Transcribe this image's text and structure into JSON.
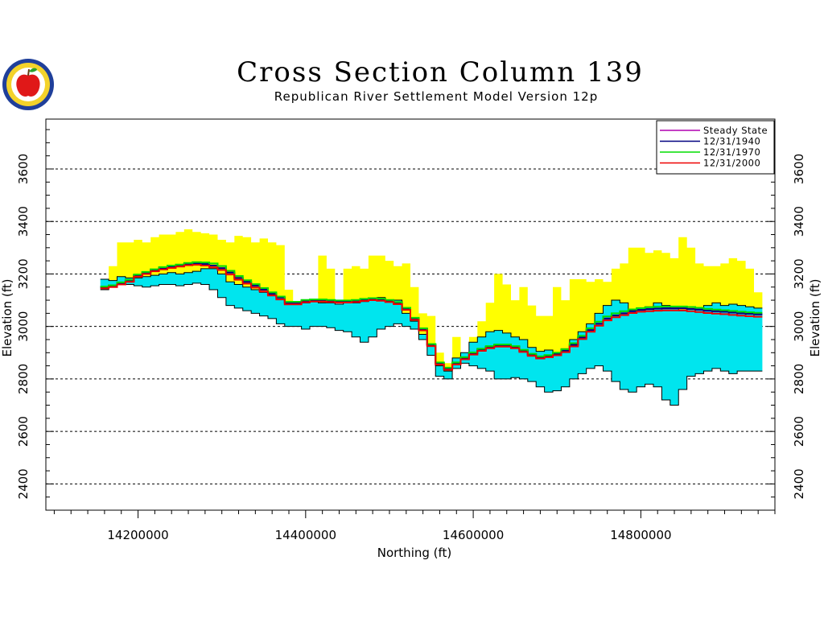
{
  "chart_data": {
    "type": "area",
    "title": "Cross Section Column 139",
    "subtitle": "Republican River Settlement Model Version 12p",
    "xlabel": "Northing  (ft)",
    "ylabel": "Elevation  (ft)",
    "ylabel_right": "Elevation  (ft)",
    "xlim": [
      14090000,
      14960000
    ],
    "ylim": [
      2300,
      3790
    ],
    "xticks": [
      14200000,
      14400000,
      14600000,
      14800000
    ],
    "xtick_labels": [
      "14200000",
      "14400000",
      "14600000",
      "14800000"
    ],
    "yticks": [
      2400,
      2600,
      2800,
      3000,
      3200,
      3400,
      3600
    ],
    "ytick_labels": [
      "2400",
      "2600",
      "2800",
      "3000",
      "3200",
      "3400",
      "3600"
    ],
    "grid": "horizontal dashed",
    "legend_position": "top-right",
    "colors": {
      "upper_layer": "#ffff00",
      "lower_layer": "#00e5ee",
      "frame": "#000000"
    },
    "x": [
      14160000,
      14170000,
      14180000,
      14190000,
      14200000,
      14210000,
      14220000,
      14230000,
      14240000,
      14250000,
      14260000,
      14270000,
      14280000,
      14290000,
      14300000,
      14310000,
      14320000,
      14330000,
      14340000,
      14350000,
      14360000,
      14370000,
      14380000,
      14390000,
      14400000,
      14410000,
      14420000,
      14430000,
      14440000,
      14450000,
      14460000,
      14470000,
      14480000,
      14490000,
      14500000,
      14510000,
      14520000,
      14530000,
      14540000,
      14550000,
      14560000,
      14570000,
      14580000,
      14590000,
      14600000,
      14610000,
      14620000,
      14630000,
      14640000,
      14650000,
      14660000,
      14670000,
      14680000,
      14690000,
      14700000,
      14710000,
      14720000,
      14730000,
      14740000,
      14750000,
      14760000,
      14770000,
      14780000,
      14790000,
      14800000,
      14810000,
      14820000,
      14830000,
      14840000,
      14850000,
      14860000,
      14870000,
      14880000,
      14890000,
      14900000,
      14910000,
      14920000,
      14930000,
      14940000
    ],
    "layer_top": [
      3180,
      3230,
      3320,
      3320,
      3330,
      3320,
      3340,
      3350,
      3350,
      3360,
      3370,
      3360,
      3355,
      3350,
      3330,
      3320,
      3345,
      3340,
      3320,
      3335,
      3320,
      3310,
      3140,
      3080,
      3040,
      3080,
      3270,
      3220,
      3050,
      3220,
      3230,
      3220,
      3270,
      3270,
      3250,
      3230,
      3240,
      3150,
      3050,
      3040,
      2900,
      2860,
      2960,
      2890,
      2960,
      3020,
      3090,
      3200,
      3160,
      3100,
      3150,
      3080,
      3040,
      3040,
      3150,
      3100,
      3180,
      3180,
      3170,
      3180,
      3170,
      3220,
      3240,
      3300,
      3300,
      3280,
      3290,
      3280,
      3260,
      3340,
      3300,
      3240,
      3230,
      3230,
      3240,
      3260,
      3250,
      3220,
      3130
    ],
    "layer_mid": [
      3180,
      3175,
      3190,
      3185,
      3185,
      3190,
      3195,
      3200,
      3205,
      3200,
      3205,
      3210,
      3220,
      3220,
      3200,
      3170,
      3160,
      3150,
      3140,
      3130,
      3120,
      3110,
      3090,
      3085,
      3090,
      3095,
      3090,
      3090,
      3085,
      3090,
      3090,
      3095,
      3100,
      3110,
      3095,
      3100,
      3050,
      3020,
      2970,
      2930,
      2850,
      2830,
      2880,
      2900,
      2940,
      2960,
      2980,
      2985,
      2975,
      2960,
      2950,
      2920,
      2905,
      2910,
      2900,
      2915,
      2950,
      2980,
      3010,
      3050,
      3080,
      3100,
      3090,
      3060,
      3070,
      3075,
      3090,
      3080,
      3070,
      3060,
      3065,
      3070,
      3080,
      3090,
      3080,
      3085,
      3080,
      3075,
      3070
    ],
    "layer_bottom": [
      3140,
      3150,
      3160,
      3160,
      3155,
      3150,
      3155,
      3160,
      3160,
      3155,
      3160,
      3165,
      3160,
      3140,
      3110,
      3080,
      3070,
      3060,
      3050,
      3040,
      3030,
      3010,
      3000,
      3000,
      2990,
      3000,
      3000,
      2995,
      2985,
      2980,
      2960,
      2940,
      2960,
      2990,
      3000,
      3010,
      3000,
      2990,
      2950,
      2890,
      2810,
      2800,
      2840,
      2860,
      2850,
      2840,
      2830,
      2800,
      2800,
      2805,
      2800,
      2790,
      2770,
      2750,
      2755,
      2770,
      2800,
      2820,
      2840,
      2850,
      2830,
      2790,
      2760,
      2750,
      2770,
      2780,
      2770,
      2720,
      2700,
      2760,
      2810,
      2820,
      2830,
      2840,
      2830,
      2820,
      2830,
      2830,
      2830
    ],
    "series": [
      {
        "name": "Steady State",
        "color": "#b000b0",
        "values": [
          3150,
          3155,
          3165,
          3175,
          3195,
          3205,
          3215,
          3222,
          3228,
          3232,
          3238,
          3240,
          3238,
          3232,
          3222,
          3205,
          3185,
          3170,
          3155,
          3140,
          3125,
          3110,
          3090,
          3090,
          3098,
          3100,
          3100,
          3098,
          3096,
          3096,
          3098,
          3102,
          3105,
          3103,
          3098,
          3090,
          3068,
          3030,
          2990,
          2930,
          2860,
          2840,
          2860,
          2880,
          2898,
          2912,
          2922,
          2928,
          2928,
          2922,
          2908,
          2893,
          2883,
          2888,
          2896,
          2908,
          2930,
          2958,
          2986,
          3010,
          3030,
          3042,
          3050,
          3058,
          3063,
          3066,
          3068,
          3069,
          3069,
          3069,
          3067,
          3064,
          3060,
          3058,
          3056,
          3053,
          3050,
          3048,
          3046
        ]
      },
      {
        "name": "12/31/1940",
        "color": "#000080",
        "values": [
          3150,
          3155,
          3165,
          3175,
          3195,
          3205,
          3215,
          3222,
          3228,
          3232,
          3238,
          3240,
          3238,
          3232,
          3222,
          3205,
          3185,
          3170,
          3155,
          3140,
          3125,
          3110,
          3090,
          3090,
          3098,
          3100,
          3100,
          3098,
          3096,
          3096,
          3098,
          3102,
          3105,
          3103,
          3098,
          3090,
          3068,
          3030,
          2990,
          2930,
          2860,
          2840,
          2860,
          2880,
          2898,
          2912,
          2922,
          2928,
          2928,
          2922,
          2908,
          2893,
          2883,
          2888,
          2896,
          2908,
          2930,
          2958,
          2986,
          3010,
          3030,
          3042,
          3050,
          3058,
          3063,
          3066,
          3068,
          3069,
          3069,
          3069,
          3067,
          3064,
          3060,
          3058,
          3056,
          3053,
          3050,
          3048,
          3046
        ]
      },
      {
        "name": "12/31/1970",
        "color": "#00dd00",
        "values": [
          3152,
          3157,
          3168,
          3178,
          3198,
          3208,
          3218,
          3226,
          3232,
          3236,
          3242,
          3245,
          3244,
          3240,
          3230,
          3212,
          3192,
          3176,
          3161,
          3146,
          3130,
          3114,
          3094,
          3094,
          3101,
          3103,
          3103,
          3101,
          3099,
          3099,
          3101,
          3105,
          3108,
          3106,
          3101,
          3093,
          3071,
          3033,
          2993,
          2933,
          2863,
          2843,
          2863,
          2883,
          2901,
          2915,
          2925,
          2931,
          2931,
          2925,
          2911,
          2896,
          2886,
          2891,
          2900,
          2913,
          2936,
          2964,
          2993,
          3018,
          3038,
          3050,
          3058,
          3065,
          3070,
          3073,
          3075,
          3076,
          3076,
          3076,
          3074,
          3071,
          3067,
          3064,
          3062,
          3059,
          3056,
          3054,
          3052
        ]
      },
      {
        "name": "12/31/2000",
        "color": "#ee0000",
        "values": [
          3145,
          3150,
          3160,
          3170,
          3190,
          3200,
          3210,
          3217,
          3223,
          3228,
          3233,
          3235,
          3232,
          3225,
          3215,
          3198,
          3178,
          3163,
          3148,
          3133,
          3118,
          3103,
          3084,
          3084,
          3092,
          3095,
          3095,
          3093,
          3091,
          3091,
          3093,
          3097,
          3100,
          3098,
          3093,
          3085,
          3063,
          3025,
          2985,
          2925,
          2855,
          2835,
          2855,
          2875,
          2893,
          2907,
          2917,
          2923,
          2923,
          2917,
          2903,
          2888,
          2878,
          2883,
          2890,
          2902,
          2924,
          2952,
          2980,
          3003,
          3023,
          3035,
          3043,
          3051,
          3056,
          3058,
          3060,
          3061,
          3061,
          3061,
          3058,
          3055,
          3051,
          3049,
          3047,
          3044,
          3041,
          3039,
          3037
        ]
      }
    ]
  }
}
